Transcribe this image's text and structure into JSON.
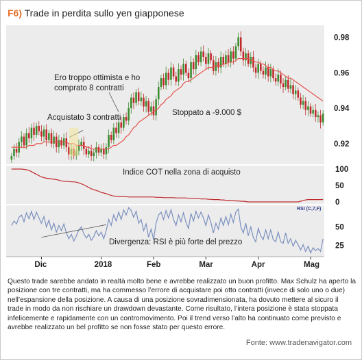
{
  "figure": {
    "number": "F6)",
    "title": "Trade in perdita sullo yen giapponese",
    "caption": "Questo trade sarebbe andato in realtà molto bene e avrebbe realizzato un buon profitto. Max Schulz ha aperto la posizione con tre contratti, ma ha commesso l’errore di acquistare poi otto contratti (invece di solo uno o due) nell’espansione della posizione. A causa di una posizione sovradimensionata, ha dovuto mettere al sicuro il trade in modo da non rischiare un drawdown devastante. Come risultato, l’intera posizione è stata stoppata infelicemente e rapidamente con un contromovimento. Poi il trend verso l’alto ha continuato come previsto e avrebbe realizzato un bel profitto se non fosse stato per questo errore.",
    "source": "Fonte: www.tradenavigator.com"
  },
  "colors": {
    "accent": "#e8702a",
    "up": "#3a8a2e",
    "down": "#c0282b",
    "ma": "#e5534b",
    "rsi": "#7a8fbf",
    "panel_bg": "#ececec"
  },
  "chart_data": [
    {
      "type": "candlestick",
      "title": "",
      "ylim": [
        0.908,
        0.986
      ],
      "yticks": [
        "0.98",
        "0.96",
        "0.94",
        "0.92"
      ],
      "ytick_values": [
        0.98,
        0.96,
        0.94,
        0.92
      ],
      "x_labels": [
        "Dic",
        "2018",
        "Feb",
        "Mar",
        "Apr",
        "Mag"
      ],
      "x_label_index": [
        12,
        36,
        57,
        78,
        99,
        120
      ],
      "n_bars": 126,
      "close": [
        0.913,
        0.917,
        0.915,
        0.921,
        0.924,
        0.919,
        0.926,
        0.923,
        0.929,
        0.925,
        0.93,
        0.927,
        0.924,
        0.928,
        0.922,
        0.926,
        0.92,
        0.924,
        0.918,
        0.922,
        0.919,
        0.923,
        0.918,
        0.914,
        0.917,
        0.913,
        0.916,
        0.919,
        0.921,
        0.917,
        0.914,
        0.916,
        0.913,
        0.915,
        0.918,
        0.915,
        0.917,
        0.914,
        0.918,
        0.925,
        0.922,
        0.929,
        0.926,
        0.932,
        0.929,
        0.935,
        0.933,
        0.94,
        0.946,
        0.943,
        0.949,
        0.944,
        0.946,
        0.941,
        0.944,
        0.938,
        0.941,
        0.936,
        0.945,
        0.952,
        0.957,
        0.953,
        0.96,
        0.956,
        0.963,
        0.958,
        0.955,
        0.962,
        0.959,
        0.965,
        0.96,
        0.957,
        0.966,
        0.962,
        0.97,
        0.966,
        0.972,
        0.969,
        0.965,
        0.971,
        0.967,
        0.961,
        0.966,
        0.963,
        0.969,
        0.965,
        0.97,
        0.966,
        0.972,
        0.968,
        0.975,
        0.98,
        0.972,
        0.967,
        0.971,
        0.965,
        0.969,
        0.963,
        0.96,
        0.965,
        0.961,
        0.959,
        0.963,
        0.958,
        0.962,
        0.957,
        0.955,
        0.959,
        0.954,
        0.952,
        0.956,
        0.951,
        0.953,
        0.948,
        0.95,
        0.946,
        0.942,
        0.944,
        0.939,
        0.941,
        0.937,
        0.939,
        0.935,
        0.936,
        0.932,
        0.937
      ],
      "ma": [
        0.918,
        0.918,
        0.918,
        0.918,
        0.918,
        0.918,
        0.918,
        0.919,
        0.919,
        0.919,
        0.92,
        0.92,
        0.92,
        0.921,
        0.921,
        0.921,
        0.921,
        0.921,
        0.921,
        0.921,
        0.921,
        0.921,
        0.921,
        0.92,
        0.92,
        0.92,
        0.919,
        0.919,
        0.919,
        0.919,
        0.918,
        0.918,
        0.917,
        0.917,
        0.917,
        0.917,
        0.917,
        0.917,
        0.917,
        0.917,
        0.918,
        0.919,
        0.919,
        0.92,
        0.921,
        0.922,
        0.924,
        0.925,
        0.927,
        0.929,
        0.93,
        0.932,
        0.933,
        0.934,
        0.935,
        0.936,
        0.937,
        0.938,
        0.939,
        0.94,
        0.942,
        0.943,
        0.945,
        0.946,
        0.947,
        0.949,
        0.95,
        0.951,
        0.952,
        0.954,
        0.955,
        0.955,
        0.956,
        0.957,
        0.958,
        0.959,
        0.96,
        0.961,
        0.962,
        0.963,
        0.963,
        0.963,
        0.964,
        0.964,
        0.964,
        0.965,
        0.965,
        0.966,
        0.966,
        0.966,
        0.967,
        0.968,
        0.968,
        0.968,
        0.968,
        0.968,
        0.967,
        0.967,
        0.966,
        0.966,
        0.965,
        0.965,
        0.964,
        0.963,
        0.963,
        0.962,
        0.961,
        0.961,
        0.96,
        0.959,
        0.958,
        0.957,
        0.957,
        0.956,
        0.955,
        0.954,
        0.953,
        0.952,
        0.951,
        0.95,
        0.949,
        0.948,
        0.947,
        0.946,
        0.945,
        0.944
      ],
      "annotations": [
        {
          "label": "Ero troppo ottimista e ho\ncomprato 8 contratti",
          "bar": 43,
          "value": 0.934
        },
        {
          "label": "Acquistato 3 contratti",
          "bar": 21,
          "value": 0.919
        },
        {
          "label": "Stoppato a -9.000 $",
          "bar": 56,
          "value": 0.937
        }
      ]
    },
    {
      "type": "line",
      "title": "Indice COT nella zona di acquisto",
      "ylim": [
        0,
        100
      ],
      "yticks": [
        "100",
        "50",
        "0"
      ],
      "ytick_values": [
        100,
        50,
        0
      ],
      "values": [
        100,
        100,
        100,
        100,
        100,
        99,
        98,
        96,
        92,
        88,
        84,
        80,
        76,
        74,
        72,
        71,
        70,
        69,
        68,
        66,
        64,
        63,
        62,
        62,
        61,
        61,
        60,
        58,
        55,
        52,
        48,
        44,
        40,
        37,
        35,
        32,
        29,
        27,
        25,
        22,
        20,
        18,
        17,
        16,
        16,
        16,
        16,
        15,
        15,
        15,
        15,
        15,
        15,
        15,
        15,
        15,
        15,
        15,
        14,
        14,
        14,
        13,
        13,
        13,
        13,
        13,
        12,
        12,
        12,
        12,
        12,
        11,
        11,
        11,
        10,
        10,
        9,
        9,
        9,
        8,
        8,
        7,
        7,
        7,
        6,
        6,
        5,
        5,
        4,
        4,
        3,
        3,
        2,
        2,
        1,
        0,
        0,
        0,
        0,
        0,
        0,
        0,
        0,
        0,
        0,
        0,
        0,
        0,
        0,
        0,
        0,
        0,
        0,
        0,
        0,
        0,
        2,
        4,
        6,
        7,
        7,
        7,
        7,
        7,
        7,
        7
      ]
    },
    {
      "type": "line",
      "title": "Divergenza: RSI è più forte del prezzo",
      "legend": "RSI (C,7,F)",
      "ylim": [
        10,
        80
      ],
      "yticks": [
        "50",
        "25"
      ],
      "ytick_values": [
        50,
        25
      ],
      "values": [
        52,
        58,
        54,
        63,
        66,
        57,
        69,
        61,
        71,
        60,
        70,
        62,
        55,
        64,
        50,
        59,
        46,
        55,
        43,
        52,
        45,
        54,
        42,
        34,
        40,
        31,
        38,
        46,
        50,
        41,
        35,
        40,
        32,
        37,
        45,
        38,
        43,
        34,
        45,
        60,
        52,
        66,
        58,
        70,
        60,
        73,
        66,
        76,
        72,
        63,
        71,
        55,
        60,
        45,
        54,
        36,
        47,
        33,
        55,
        66,
        70,
        60,
        72,
        62,
        73,
        60,
        52,
        66,
        57,
        69,
        56,
        48,
        68,
        58,
        71,
        62,
        70,
        62,
        52,
        66,
        56,
        42,
        55,
        47,
        62,
        52,
        64,
        53,
        67,
        56,
        70,
        74,
        50,
        42,
        55,
        38,
        50,
        36,
        30,
        48,
        38,
        33,
        46,
        34,
        46,
        33,
        30,
        43,
        30,
        28,
        42,
        28,
        34,
        24,
        32,
        26,
        19,
        26,
        17,
        24,
        15,
        22,
        18,
        21,
        17,
        34
      ]
    }
  ]
}
